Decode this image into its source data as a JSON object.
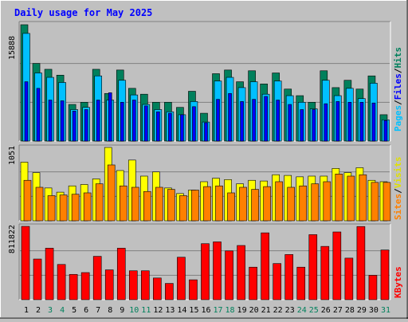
{
  "title": "Daily usage for May 2025",
  "colors": {
    "hits": "#00805c",
    "files": "#00c0ff",
    "pages": "#0000ff",
    "visits": "#ffff00",
    "sites": "#ff8000",
    "kbytes": "#ff0000",
    "title": "#0000ff",
    "weekend": "#00805c",
    "weekday": "#000000"
  },
  "chart_data": [
    {
      "type": "bar",
      "name": "hits-files-pages",
      "categories": [
        "1",
        "2",
        "3",
        "4",
        "5",
        "6",
        "7",
        "8",
        "9",
        "10",
        "11",
        "12",
        "13",
        "14",
        "15",
        "16",
        "17",
        "18",
        "19",
        "20",
        "21",
        "22",
        "23",
        "24",
        "25",
        "26",
        "27",
        "28",
        "29",
        "30",
        "31"
      ],
      "ymax_label": "15888",
      "ymax": 15888,
      "ylim": [
        0,
        15888
      ],
      "grid": true,
      "legend": {
        "position": "right",
        "entries": [
          "Pages",
          "Files",
          "Hits"
        ]
      },
      "weekend_days": [
        3,
        4,
        10,
        11,
        17,
        18,
        24,
        25,
        31
      ],
      "series": [
        {
          "name": "Hits",
          "values": [
            15888,
            10600,
            9800,
            9000,
            5000,
            5300,
            9800,
            6500,
            9700,
            7200,
            6400,
            5300,
            5300,
            4600,
            6800,
            3800,
            9200,
            9700,
            8100,
            9600,
            7800,
            9300,
            7100,
            6200,
            5300,
            9600,
            7300,
            8300,
            7100,
            8900,
            3600
          ]
        },
        {
          "name": "Files",
          "values": [
            14700,
            9300,
            8700,
            8000,
            4300,
            4600,
            8900,
            5600,
            8300,
            6300,
            5000,
            4300,
            4000,
            3600,
            5400,
            2600,
            8200,
            8700,
            7300,
            8100,
            6400,
            8200,
            6200,
            5300,
            4400,
            8300,
            6200,
            7200,
            5800,
            7900,
            2900
          ]
        },
        {
          "name": "Pages",
          "values": [
            8100,
            7200,
            5600,
            5500,
            4100,
            4300,
            5600,
            6600,
            5300,
            5600,
            4800,
            4000,
            3800,
            3600,
            4700,
            2500,
            5700,
            6500,
            5400,
            5700,
            6100,
            5600,
            5000,
            4300,
            4300,
            5100,
            5400,
            5300,
            5300,
            5200,
            2800
          ]
        }
      ]
    },
    {
      "type": "bar",
      "name": "visits-sites",
      "categories": [
        "1",
        "2",
        "3",
        "4",
        "5",
        "6",
        "7",
        "8",
        "9",
        "10",
        "11",
        "12",
        "13",
        "14",
        "15",
        "16",
        "17",
        "18",
        "19",
        "20",
        "21",
        "22",
        "23",
        "24",
        "25",
        "26",
        "27",
        "28",
        "29",
        "30",
        "31"
      ],
      "ymax_label": "1051",
      "ymax": 1051,
      "ylim": [
        0,
        1051
      ],
      "grid": true,
      "legend": {
        "position": "right",
        "entries": [
          "Sites",
          "Visits"
        ]
      },
      "series": [
        {
          "name": "Visits",
          "values": [
            840,
            690,
            470,
            410,
            500,
            520,
            600,
            1051,
            720,
            870,
            640,
            700,
            470,
            390,
            440,
            560,
            610,
            590,
            530,
            580,
            570,
            660,
            650,
            630,
            640,
            640,
            750,
            690,
            760,
            580,
            560
          ]
        },
        {
          "name": "Sites",
          "values": [
            580,
            480,
            360,
            370,
            380,
            400,
            530,
            800,
            500,
            480,
            420,
            480,
            450,
            360,
            440,
            490,
            500,
            400,
            480,
            450,
            490,
            560,
            480,
            500,
            530,
            560,
            670,
            640,
            660,
            550,
            550
          ]
        }
      ]
    },
    {
      "type": "bar",
      "name": "kbytes",
      "categories": [
        "1",
        "2",
        "3",
        "4",
        "5",
        "6",
        "7",
        "8",
        "9",
        "10",
        "11",
        "12",
        "13",
        "14",
        "15",
        "16",
        "17",
        "18",
        "19",
        "20",
        "21",
        "22",
        "23",
        "24",
        "25",
        "26",
        "27",
        "28",
        "29",
        "30",
        "31"
      ],
      "ymax_label": "811822",
      "ymax": 811822,
      "ylim": [
        0,
        811822
      ],
      "grid": true,
      "legend": {
        "position": "right",
        "entries": [
          "KBytes"
        ]
      },
      "series": [
        {
          "name": "KBytes",
          "values": [
            811822,
            450000,
            570000,
            390000,
            280000,
            300000,
            480000,
            330000,
            570000,
            320000,
            320000,
            240000,
            180000,
            470000,
            220000,
            620000,
            640000,
            540000,
            600000,
            360000,
            740000,
            400000,
            500000,
            360000,
            720000,
            590000,
            750000,
            460000,
            810000,
            270000,
            550000
          ]
        }
      ]
    }
  ]
}
